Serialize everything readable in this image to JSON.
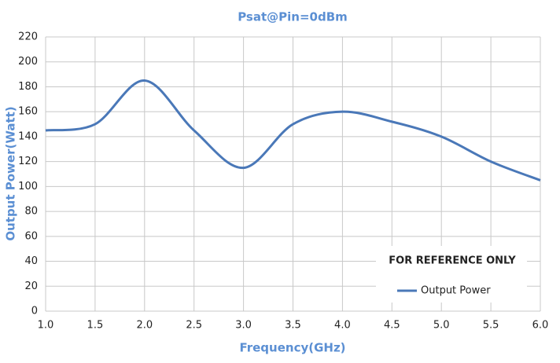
{
  "chart_data": {
    "type": "line",
    "title": "Psat@Pin=0dBm",
    "x_label": "Frequency(GHz)",
    "y_label": "Output Power(Watt)",
    "annotation": "FOR REFERENCE ONLY",
    "x": [
      1.0,
      1.5,
      2.0,
      2.5,
      3.0,
      3.5,
      4.0,
      4.5,
      5.0,
      5.5,
      6.0
    ],
    "series": [
      {
        "name": "Output Power",
        "color": "#4a78b8",
        "values": [
          145,
          150,
          185,
          145,
          115,
          150,
          160,
          152,
          140,
          120,
          105
        ]
      }
    ],
    "xlim": [
      1.0,
      6.0
    ],
    "xticks": [
      {
        "value": 1,
        "label": "1.0"
      },
      1.5,
      {
        "value": 2,
        "label": "2.0"
      },
      2.5,
      {
        "value": 3,
        "label": "3.0"
      },
      3.5,
      {
        "value": 4,
        "label": "4.0"
      },
      4.5,
      {
        "value": 5,
        "label": "5.0"
      },
      5.5,
      {
        "value": 6,
        "label": "6.0"
      }
    ],
    "ylim": [
      0,
      220
    ],
    "yticks": [
      0,
      20,
      40,
      60,
      80,
      100,
      120,
      140,
      160,
      180,
      200,
      220
    ],
    "grid": true,
    "legend": "lower right"
  }
}
